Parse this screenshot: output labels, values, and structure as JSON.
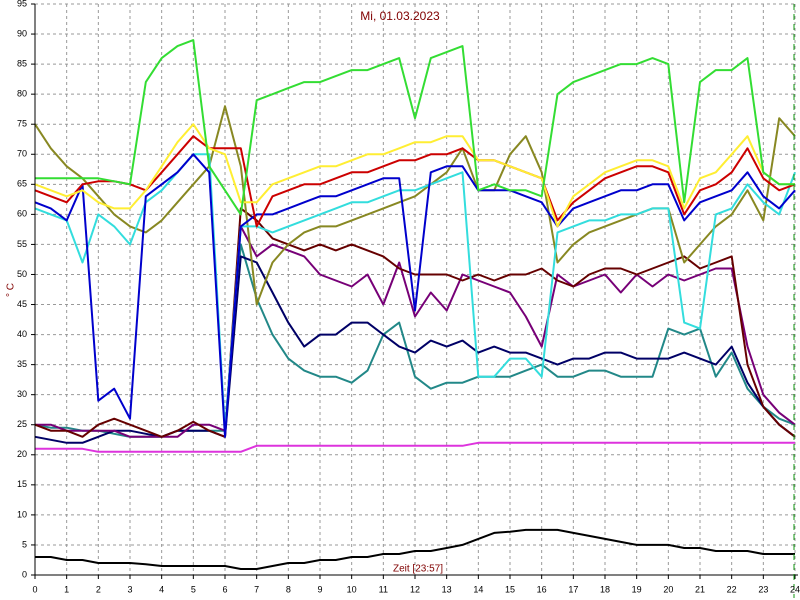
{
  "chart_data": {
    "type": "line",
    "title": "Mi, 01.03.2023",
    "x_label": "Zeit [23:57]",
    "y_label": "° C",
    "x": [
      0,
      0.5,
      1,
      1.5,
      2,
      2.5,
      3,
      3.5,
      4,
      4.5,
      5,
      5.5,
      6,
      6.5,
      7,
      7.5,
      8,
      8.5,
      9,
      9.5,
      10,
      10.5,
      11,
      11.5,
      12,
      12.5,
      13,
      13.5,
      14,
      14.5,
      15,
      15.5,
      16,
      16.5,
      17,
      17.5,
      18,
      18.5,
      19,
      19.5,
      20,
      20.5,
      21,
      21.5,
      22,
      22.5,
      23,
      23.5,
      24
    ],
    "xlim": [
      0,
      24
    ],
    "xticks": [
      0,
      1,
      2,
      3,
      4,
      5,
      6,
      7,
      8,
      9,
      10,
      11,
      12,
      13,
      14,
      15,
      16,
      17,
      18,
      19,
      20,
      21,
      22,
      23,
      24
    ],
    "ylim": [
      0,
      95
    ],
    "yticks": [
      0,
      5,
      10,
      15,
      20,
      25,
      30,
      35,
      40,
      45,
      50,
      55,
      60,
      65,
      70,
      75,
      80,
      85,
      90,
      95
    ],
    "grid": true,
    "series": [
      {
        "color": "#000000",
        "values": [
          3,
          3,
          2.5,
          2.5,
          2,
          2,
          2,
          1.8,
          1.5,
          1.5,
          1.5,
          1.5,
          1.5,
          1,
          1,
          1.5,
          2,
          2,
          2.5,
          2.5,
          3,
          3,
          3.5,
          3.5,
          4,
          4,
          4.5,
          5,
          6,
          7,
          7.2,
          7.5,
          7.5,
          7.5,
          7,
          6.5,
          6,
          5.5,
          5,
          5,
          5,
          4.5,
          4.5,
          4,
          4,
          4,
          3.5,
          3.5,
          3.5
        ]
      },
      {
        "color": "#dd33dd",
        "values": [
          21,
          21,
          21,
          21,
          20.5,
          20.5,
          20.5,
          20.5,
          20.5,
          20.5,
          20.5,
          20.5,
          20.5,
          20.5,
          21.5,
          21.5,
          21.5,
          21.5,
          21.5,
          21.5,
          21.5,
          21.5,
          21.5,
          21.5,
          21.5,
          21.5,
          21.5,
          21.5,
          22,
          22,
          22,
          22,
          22,
          22,
          22,
          22,
          22,
          22,
          22,
          22,
          22,
          22,
          22,
          22,
          22,
          22,
          22,
          22,
          22
        ]
      },
      {
        "color": "#228888",
        "values": [
          25,
          24.5,
          24.5,
          24,
          24,
          23.5,
          23,
          23,
          23,
          24,
          24,
          24,
          24,
          55,
          46,
          40,
          36,
          34,
          33,
          33,
          32,
          34,
          40,
          42,
          33,
          31,
          32,
          32,
          33,
          33,
          33,
          34,
          35,
          33,
          33,
          34,
          34,
          33,
          33,
          33,
          41,
          40,
          41,
          33,
          37,
          31,
          28,
          26,
          25
        ]
      },
      {
        "color": "#000066",
        "values": [
          23,
          22.5,
          22,
          22,
          23,
          24,
          24,
          23.5,
          23,
          24,
          24,
          24,
          23,
          53,
          52,
          47,
          42,
          38,
          40,
          40,
          42,
          42,
          40,
          38,
          37,
          39,
          38,
          39,
          37,
          38,
          37,
          37,
          36,
          35,
          36,
          36,
          37,
          37,
          36,
          36,
          36,
          37,
          36,
          35,
          38,
          32,
          28,
          25,
          23
        ]
      },
      {
        "color": "#770077",
        "values": [
          25,
          25,
          24,
          24,
          24,
          24,
          23,
          23,
          23,
          23,
          25,
          25,
          24,
          58,
          53,
          55,
          54,
          53,
          50,
          49,
          48,
          50,
          45,
          52,
          43,
          47,
          44,
          50,
          49,
          48,
          47,
          43,
          38,
          50,
          48,
          49,
          50,
          47,
          50,
          48,
          50,
          49,
          50,
          51,
          51,
          38,
          30,
          27,
          25
        ]
      },
      {
        "color": "#660000",
        "values": [
          25,
          24,
          24,
          23,
          25,
          26,
          25,
          24,
          23,
          24,
          25.5,
          24,
          23,
          61,
          59,
          56,
          55,
          54,
          55,
          54,
          55,
          54,
          53,
          51,
          50,
          50,
          50,
          49,
          50,
          49,
          50,
          50,
          51,
          49,
          48,
          50,
          51,
          51,
          50,
          51,
          52,
          53,
          51,
          52,
          53,
          35,
          28,
          25,
          23
        ]
      },
      {
        "color": "#888822",
        "values": [
          75,
          71,
          68,
          66,
          63,
          60,
          58,
          57,
          59,
          62,
          65,
          68,
          78,
          68,
          45,
          52,
          55,
          57,
          58,
          58,
          59,
          60,
          61,
          62,
          63,
          65,
          67,
          71,
          64,
          64,
          70,
          73,
          67,
          52,
          55,
          57,
          58,
          59,
          60,
          61,
          61,
          52,
          55,
          58,
          60,
          64,
          59,
          76,
          73
        ]
      },
      {
        "color": "#33dddd",
        "values": [
          61,
          60,
          59,
          52,
          60,
          58,
          55,
          62,
          64,
          67,
          70,
          70,
          24,
          58,
          58,
          57,
          58,
          59,
          60,
          61,
          62,
          62,
          63,
          64,
          64,
          65,
          66,
          67,
          33,
          33,
          36,
          36,
          33,
          57,
          58,
          59,
          59,
          60,
          60,
          61,
          61,
          42,
          41,
          60,
          61,
          65,
          62,
          60,
          67
        ]
      },
      {
        "color": "#0000cc",
        "values": [
          62,
          61,
          59,
          65,
          29,
          31,
          26,
          63,
          65,
          67,
          70,
          67,
          23,
          58,
          60,
          60,
          61,
          62,
          63,
          63,
          64,
          65,
          66,
          66,
          44,
          67,
          68,
          68,
          64,
          64,
          64,
          63,
          62,
          58,
          61,
          62,
          63,
          64,
          64,
          65,
          65,
          59,
          62,
          63,
          64,
          67,
          63,
          61,
          64
        ]
      },
      {
        "color": "#cc0000",
        "values": [
          64,
          63,
          62,
          65,
          65.5,
          65.5,
          65,
          64,
          67,
          70,
          73,
          71,
          71,
          71,
          58,
          63,
          64,
          65,
          65,
          66,
          67,
          67,
          68,
          69,
          69,
          70,
          70,
          71,
          69,
          69,
          68,
          67,
          66,
          59,
          62,
          64,
          66,
          67,
          68,
          68,
          67,
          60,
          64,
          65,
          67,
          71,
          66,
          64,
          65
        ]
      },
      {
        "color": "#ffee33",
        "values": [
          65,
          64,
          63,
          64,
          62,
          61,
          61,
          64,
          68,
          72,
          75,
          71,
          70,
          62,
          62,
          65,
          66,
          67,
          68,
          68,
          69,
          70,
          70,
          71,
          72,
          72,
          73,
          73,
          69,
          69,
          68,
          67,
          66,
          58,
          63,
          65,
          67,
          68,
          69,
          69,
          68,
          61,
          66,
          67,
          70,
          73,
          67,
          65,
          65
        ]
      },
      {
        "color": "#33dd33",
        "values": [
          66,
          66,
          66,
          66,
          66,
          65.5,
          65,
          82,
          86,
          88,
          89,
          68,
          64,
          60,
          79,
          80,
          81,
          82,
          82,
          83,
          84,
          84,
          85,
          86,
          76,
          86,
          87,
          88,
          64,
          65,
          64,
          64,
          63,
          80,
          82,
          83,
          84,
          85,
          85,
          86,
          85,
          62,
          82,
          84,
          84,
          86,
          67,
          65,
          65
        ]
      }
    ]
  }
}
